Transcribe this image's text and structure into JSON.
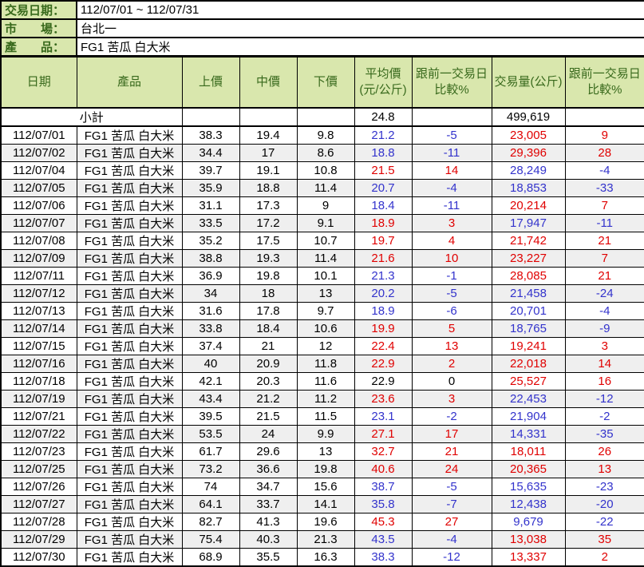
{
  "info": {
    "rows": [
      {
        "label": "交易日期：",
        "value": "112/07/01 ~ 112/07/31"
      },
      {
        "label": "市　　場：",
        "value": "台北一"
      },
      {
        "label": "產　　品：",
        "value": "FG1 苦瓜 白大米"
      }
    ]
  },
  "table": {
    "headers": [
      "日期",
      "產品",
      "上價",
      "中價",
      "下價",
      "平均價\n(元/公斤)",
      "跟前一交易日\n比較%",
      "交易量(公斤)",
      "跟前一交易日\n比較%"
    ],
    "subtotal": {
      "label": "小計",
      "avg_price": "24.8",
      "volume": "499,619"
    },
    "rows": [
      [
        "112/07/01",
        "FG1 苦瓜 白大米",
        "38.3",
        "19.4",
        "9.8",
        "21.2",
        "-5",
        "23,005",
        "9"
      ],
      [
        "112/07/02",
        "FG1 苦瓜 白大米",
        "34.4",
        "17",
        "8.6",
        "18.8",
        "-11",
        "29,396",
        "28"
      ],
      [
        "112/07/04",
        "FG1 苦瓜 白大米",
        "39.7",
        "19.1",
        "10.8",
        "21.5",
        "14",
        "28,249",
        "-4"
      ],
      [
        "112/07/05",
        "FG1 苦瓜 白大米",
        "35.9",
        "18.8",
        "11.4",
        "20.7",
        "-4",
        "18,853",
        "-33"
      ],
      [
        "112/07/06",
        "FG1 苦瓜 白大米",
        "31.1",
        "17.3",
        "9",
        "18.4",
        "-11",
        "20,214",
        "7"
      ],
      [
        "112/07/07",
        "FG1 苦瓜 白大米",
        "33.5",
        "17.2",
        "9.1",
        "18.9",
        "3",
        "17,947",
        "-11"
      ],
      [
        "112/07/08",
        "FG1 苦瓜 白大米",
        "35.2",
        "17.5",
        "10.7",
        "19.7",
        "4",
        "21,742",
        "21"
      ],
      [
        "112/07/09",
        "FG1 苦瓜 白大米",
        "38.8",
        "19.3",
        "11.4",
        "21.6",
        "10",
        "23,227",
        "7"
      ],
      [
        "112/07/11",
        "FG1 苦瓜 白大米",
        "36.9",
        "19.8",
        "10.1",
        "21.3",
        "-1",
        "28,085",
        "21"
      ],
      [
        "112/07/12",
        "FG1 苦瓜 白大米",
        "34",
        "18",
        "13",
        "20.2",
        "-5",
        "21,458",
        "-24"
      ],
      [
        "112/07/13",
        "FG1 苦瓜 白大米",
        "31.6",
        "17.8",
        "9.7",
        "18.9",
        "-6",
        "20,701",
        "-4"
      ],
      [
        "112/07/14",
        "FG1 苦瓜 白大米",
        "33.8",
        "18.4",
        "10.6",
        "19.9",
        "5",
        "18,765",
        "-9"
      ],
      [
        "112/07/15",
        "FG1 苦瓜 白大米",
        "37.4",
        "21",
        "12",
        "22.4",
        "13",
        "19,241",
        "3"
      ],
      [
        "112/07/16",
        "FG1 苦瓜 白大米",
        "40",
        "20.9",
        "11.8",
        "22.9",
        "2",
        "22,018",
        "14"
      ],
      [
        "112/07/18",
        "FG1 苦瓜 白大米",
        "42.1",
        "20.3",
        "11.6",
        "22.9",
        "0",
        "25,527",
        "16"
      ],
      [
        "112/07/19",
        "FG1 苦瓜 白大米",
        "43.4",
        "21.2",
        "11.2",
        "23.6",
        "3",
        "22,453",
        "-12"
      ],
      [
        "112/07/21",
        "FG1 苦瓜 白大米",
        "39.5",
        "21.5",
        "11.5",
        "23.1",
        "-2",
        "21,904",
        "-2"
      ],
      [
        "112/07/22",
        "FG1 苦瓜 白大米",
        "53.5",
        "24",
        "9.9",
        "27.1",
        "17",
        "14,331",
        "-35"
      ],
      [
        "112/07/23",
        "FG1 苦瓜 白大米",
        "61.7",
        "29.6",
        "13",
        "32.7",
        "21",
        "18,011",
        "26"
      ],
      [
        "112/07/25",
        "FG1 苦瓜 白大米",
        "73.2",
        "36.6",
        "19.8",
        "40.6",
        "24",
        "20,365",
        "13"
      ],
      [
        "112/07/26",
        "FG1 苦瓜 白大米",
        "74",
        "34.7",
        "15.6",
        "38.7",
        "-5",
        "15,635",
        "-23"
      ],
      [
        "112/07/27",
        "FG1 苦瓜 白大米",
        "64.1",
        "33.7",
        "14.1",
        "35.8",
        "-7",
        "12,438",
        "-20"
      ],
      [
        "112/07/28",
        "FG1 苦瓜 白大米",
        "82.7",
        "41.3",
        "19.6",
        "45.3",
        "27",
        "9,679",
        "-22"
      ],
      [
        "112/07/29",
        "FG1 苦瓜 白大米",
        "75.4",
        "40.3",
        "21.3",
        "43.5",
        "-4",
        "13,038",
        "35"
      ],
      [
        "112/07/30",
        "FG1 苦瓜 白大米",
        "68.9",
        "35.5",
        "16.3",
        "38.3",
        "-12",
        "13,337",
        "2"
      ]
    ]
  },
  "colors": {
    "positive": "#e00000",
    "negative": "#3333cc",
    "neutral": "#000000",
    "header_bg": "#d9e7ad",
    "header_text": "#38691c",
    "row_alt_bg": "#efefef",
    "border": "#000000"
  }
}
